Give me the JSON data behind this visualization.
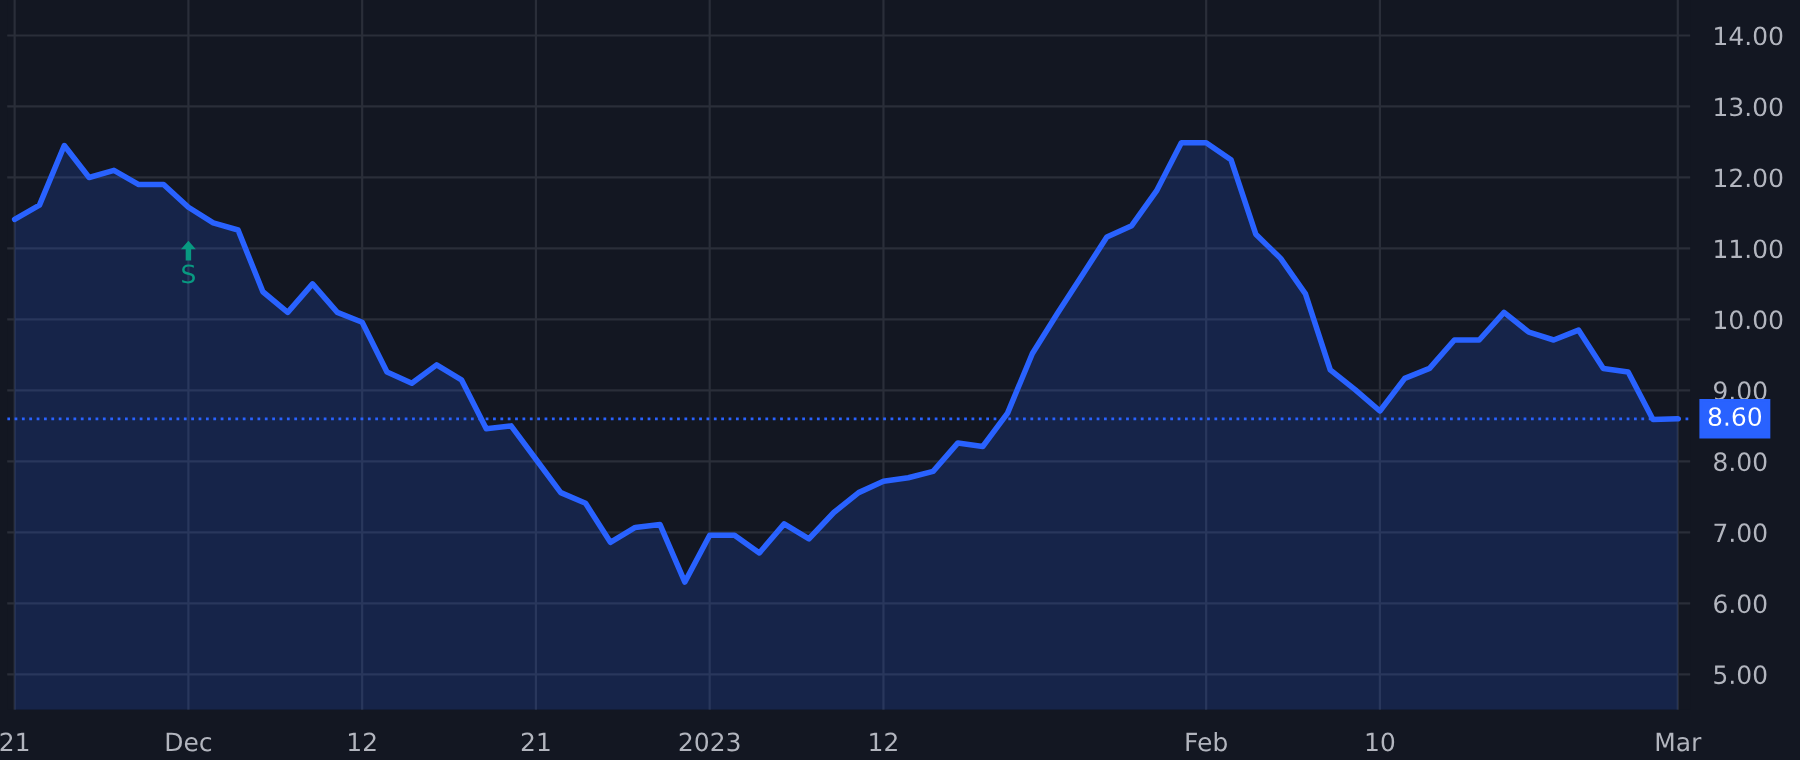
{
  "chart_data": {
    "type": "area",
    "categories": [
      "21",
      null,
      null,
      null,
      null,
      null,
      null,
      "Dec",
      null,
      null,
      null,
      null,
      null,
      null,
      "12",
      null,
      null,
      null,
      null,
      null,
      null,
      "21",
      null,
      null,
      null,
      null,
      null,
      null,
      "2023",
      null,
      null,
      null,
      null,
      null,
      null,
      "12",
      null,
      null,
      null,
      null,
      null,
      null,
      null,
      null,
      null,
      null,
      null,
      null,
      "Feb",
      null,
      null,
      null,
      null,
      null,
      null,
      "10",
      null,
      null,
      null,
      null,
      null,
      null,
      null,
      null,
      null,
      null,
      null,
      "Mar"
    ],
    "series": [
      {
        "color": "#2962ff",
        "values": [
          11.41,
          11.61,
          12.45,
          12.0,
          12.1,
          11.9,
          11.9,
          11.58,
          11.36,
          11.26,
          10.39,
          10.1,
          10.5,
          10.1,
          9.96,
          9.26,
          9.1,
          9.36,
          9.15,
          8.46,
          8.5,
          8.03,
          7.56,
          7.41,
          6.86,
          7.07,
          7.11,
          6.3,
          6.96,
          6.96,
          6.71,
          7.12,
          6.91,
          7.28,
          7.56,
          7.72,
          7.77,
          7.86,
          8.26,
          8.21,
          8.68,
          9.52,
          10.08,
          10.62,
          11.16,
          11.32,
          11.81,
          12.49,
          12.49,
          12.25,
          11.2,
          10.86,
          10.36,
          9.29,
          9.01,
          8.71,
          9.17,
          9.31,
          9.71,
          9.71,
          10.1,
          9.82,
          9.71,
          9.85,
          9.31,
          9.26,
          8.59,
          8.6
        ]
      }
    ],
    "ylim": [
      4.5,
      14.5
    ],
    "yticks": [
      {
        "value": 5,
        "label": "5.00"
      },
      {
        "value": 6,
        "label": "6.00"
      },
      {
        "value": 7,
        "label": "7.00"
      },
      {
        "value": 8,
        "label": "8.00"
      },
      {
        "value": 9,
        "label": "9.00"
      },
      {
        "value": 10,
        "label": "10.00"
      },
      {
        "value": 11,
        "label": "11.00"
      },
      {
        "value": 12,
        "label": "12.00"
      },
      {
        "value": 13,
        "label": "13.00"
      },
      {
        "value": 14,
        "label": "14.00"
      }
    ],
    "ref_lines": [
      {
        "axis": "y",
        "value": 8.6,
        "label": "8.60",
        "color": "#2962ff",
        "line_style": "dotted"
      }
    ],
    "annotations": [
      {
        "text": "S",
        "x": "Dec",
        "y": 11.58
      }
    ],
    "grid": true,
    "legend": false
  }
}
